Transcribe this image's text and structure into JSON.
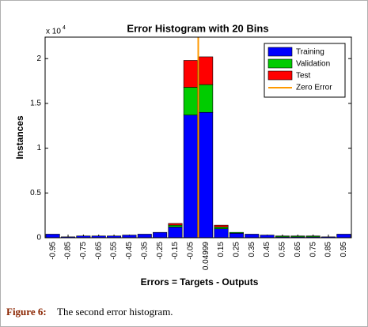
{
  "chart_data": {
    "type": "stacked_bar",
    "title": "Error Histogram with 20 Bins",
    "x_label": "Errors = Targets - Outputs",
    "y_label": "Instances",
    "y_multiplier": {
      "base": "x 10",
      "exponent": "4"
    },
    "categories": [
      "-0.95",
      "-0.85",
      "-0.75",
      "-0.65",
      "-0.55",
      "-0.45",
      "-0.35",
      "-0.25",
      "-0.15",
      "-0.05",
      "0.04999",
      "0.15",
      "0.25",
      "0.35",
      "0.45",
      "0.55",
      "0.65",
      "0.75",
      "0.85",
      "0.95"
    ],
    "series": [
      {
        "name": "Training",
        "color": "#0000ff",
        "values": [
          0.04,
          0.01,
          0.02,
          0.02,
          0.02,
          0.03,
          0.04,
          0.06,
          0.12,
          1.37,
          1.4,
          0.1,
          0.05,
          0.04,
          0.03,
          0.01,
          0.01,
          0.01,
          0.01,
          0.04
        ]
      },
      {
        "name": "Validation",
        "color": "#00cc00",
        "values": [
          0,
          0,
          0,
          0,
          0,
          0,
          0,
          0,
          0.02,
          0.31,
          0.31,
          0.02,
          0.01,
          0,
          0,
          0.01,
          0.01,
          0.01,
          0,
          0
        ]
      },
      {
        "name": "Test",
        "color": "#ff0000",
        "values": [
          0,
          0,
          0,
          0,
          0,
          0,
          0,
          0,
          0.02,
          0.3,
          0.31,
          0.02,
          0,
          0,
          0,
          0,
          0,
          0,
          0,
          0
        ]
      }
    ],
    "reference_line": {
      "name": "Zero Error",
      "color": "#ff9900"
    },
    "ylim": [
      0,
      2.24
    ],
    "yticks": [
      0,
      0.5,
      1,
      1.5,
      2
    ],
    "legend": "upper-right"
  },
  "caption": {
    "label": "Figure 6:",
    "text": "The second error histogram."
  }
}
